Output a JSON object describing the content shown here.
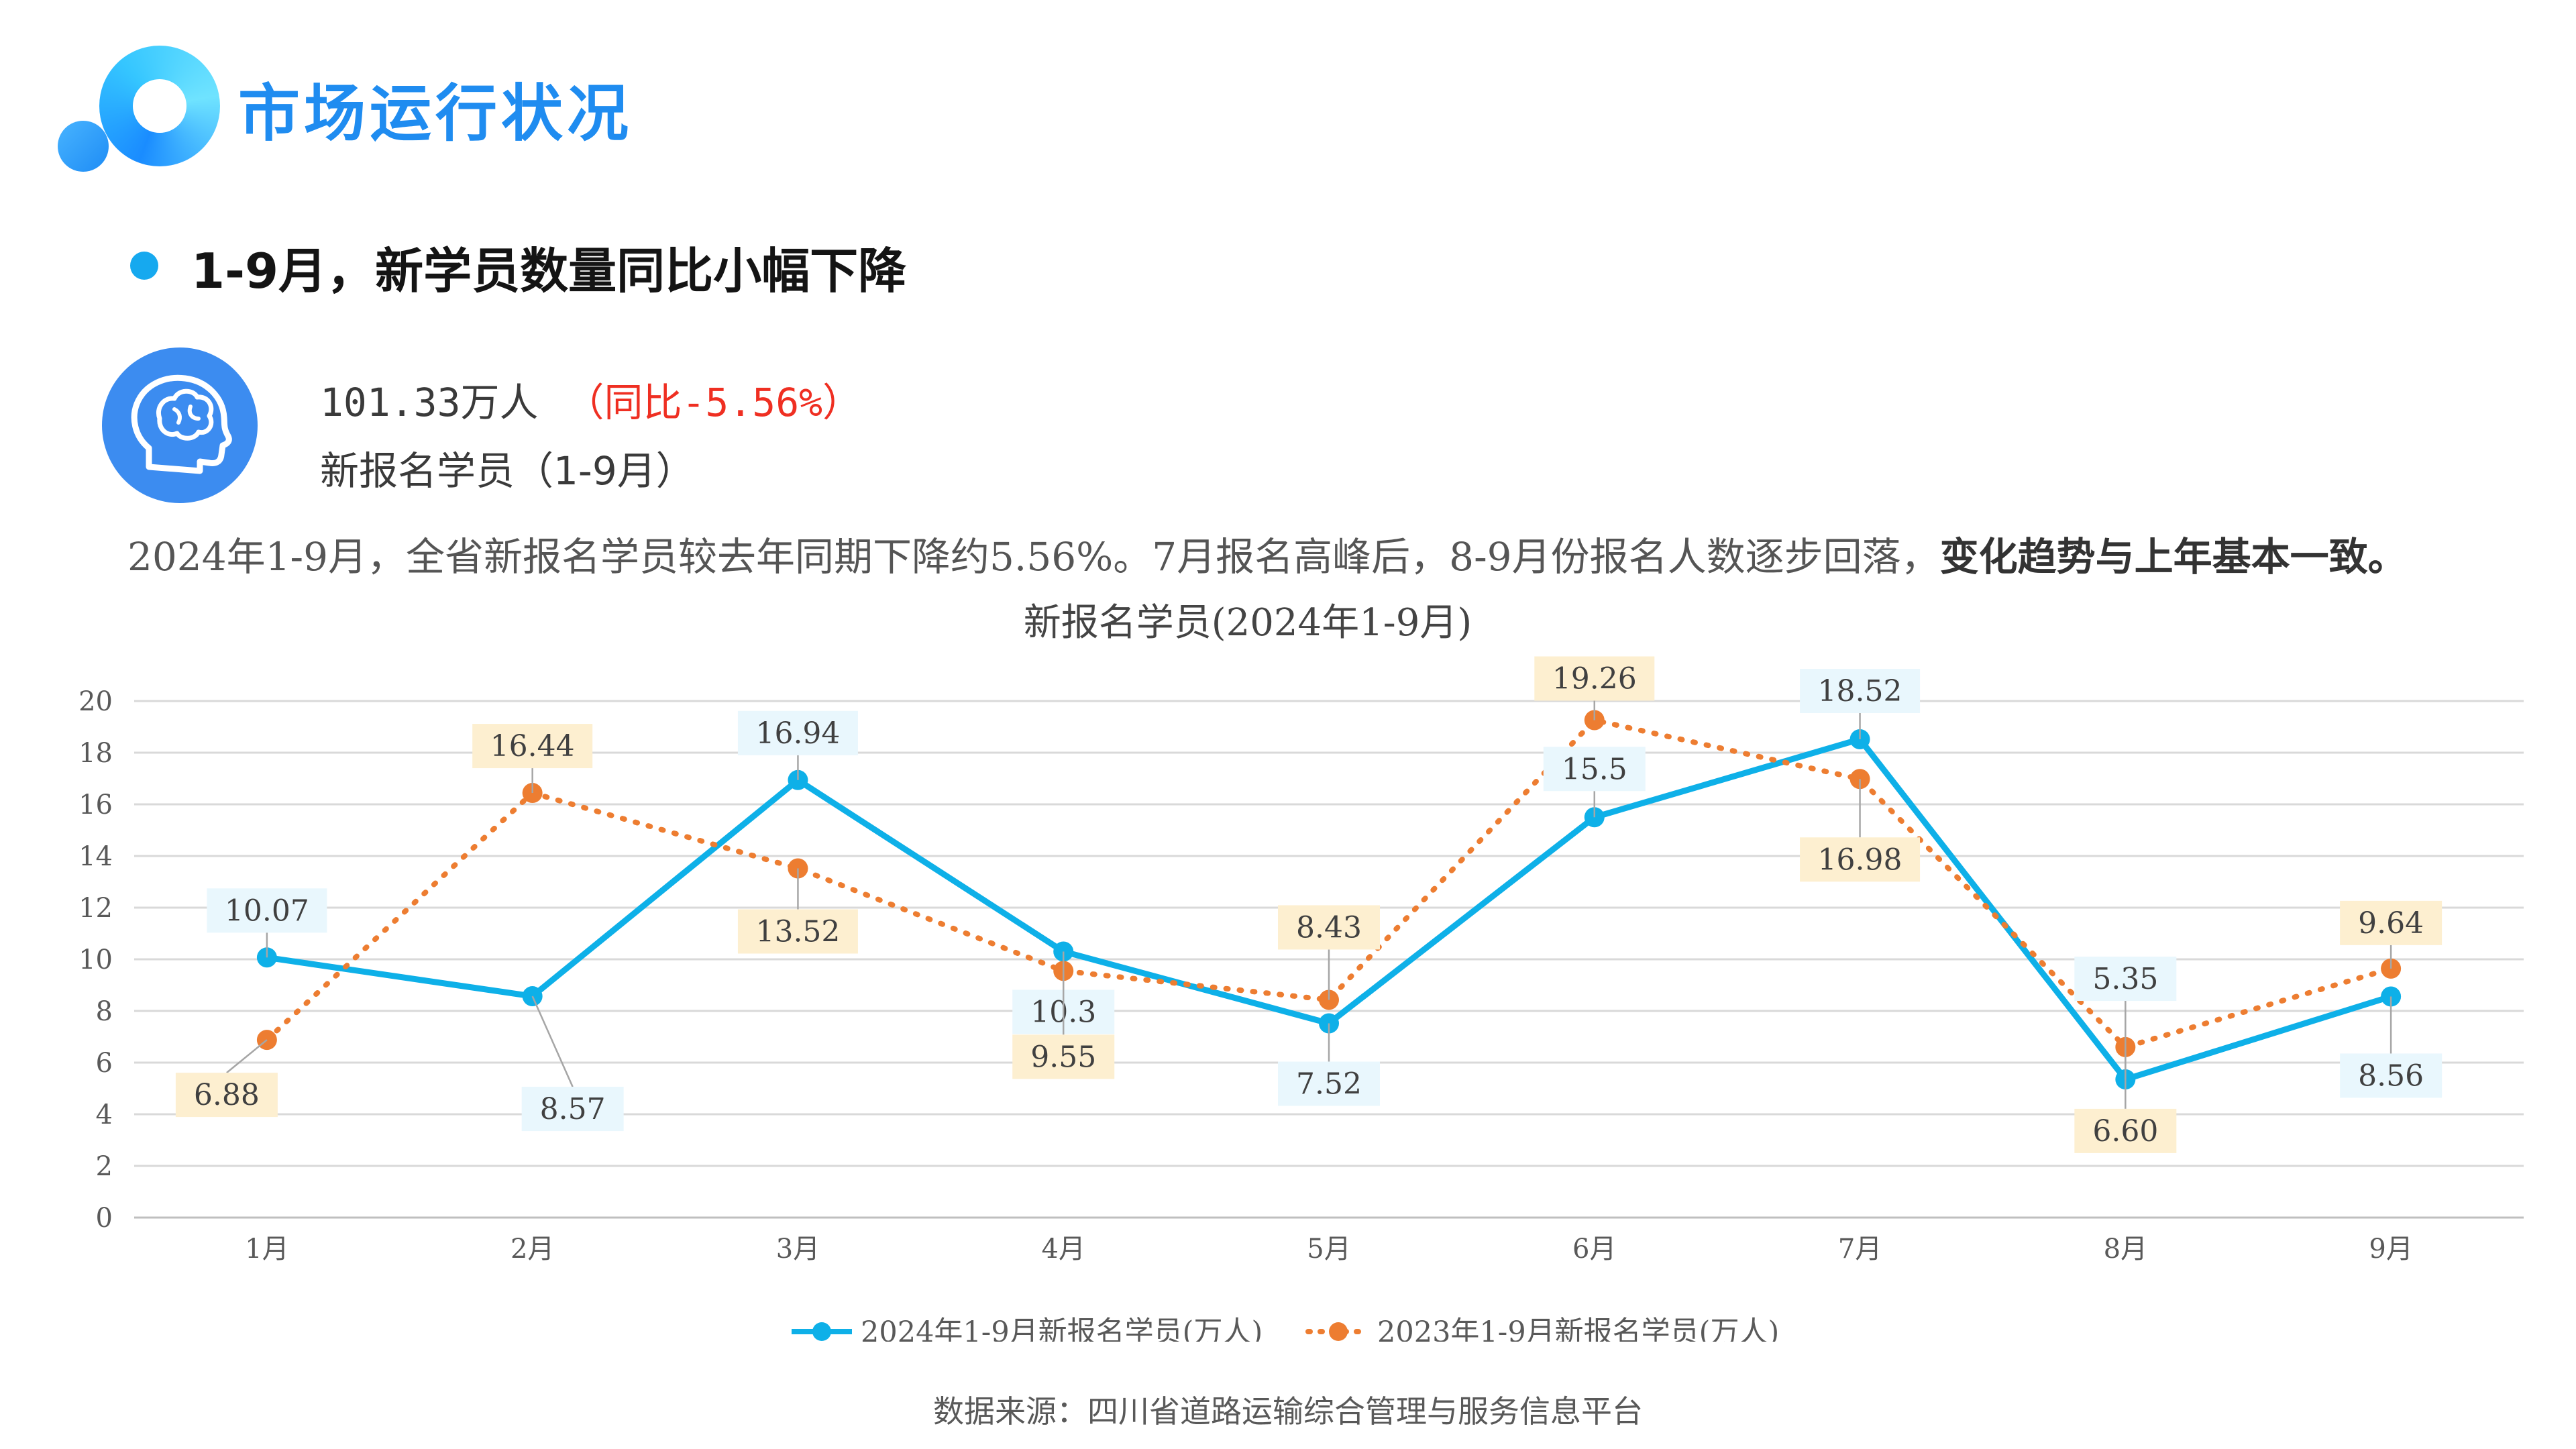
{
  "header": {
    "title": "市场运行状况"
  },
  "headline": {
    "text": "1-9月，新学员数量同比小幅下降"
  },
  "stat": {
    "value": "101.33万人",
    "yoy": "（同比-5.56%）",
    "label": "新报名学员（1-9月）"
  },
  "description": {
    "main": "2024年1-9月，全省新报名学员较去年同期下降约5.56%。7月报名高峰后，8-9月份报名人数逐步回落，",
    "emphasis": "变化趋势与上年基本一致。"
  },
  "icons": {
    "logo": "logo-rings-icon",
    "bullet": "bullet-dot-icon",
    "head": "head-brain-icon"
  },
  "colors": {
    "accent": "#1f8cf0",
    "series_2024": "#0eb0e8",
    "series_2023": "#ed7d31",
    "negative": "#ef2f22"
  },
  "chart_data": {
    "type": "line",
    "title": "新报名学员(2024年1-9月)",
    "categories": [
      "1月",
      "2月",
      "3月",
      "4月",
      "5月",
      "6月",
      "7月",
      "8月",
      "9月"
    ],
    "series": [
      {
        "name": "2024年1-9月新报名学员(万人)",
        "values": [
          10.07,
          8.57,
          16.94,
          10.3,
          7.52,
          15.5,
          18.52,
          5.35,
          8.56
        ],
        "labels": [
          "10.07",
          "8.57",
          "16.94",
          "10.3",
          "7.52",
          "15.5",
          "18.52",
          "5.35",
          "8.56"
        ],
        "style": "solid"
      },
      {
        "name": "2023年1-9月新报名学员(万人)",
        "values": [
          6.88,
          16.44,
          13.52,
          9.55,
          8.43,
          19.26,
          16.98,
          6.6,
          9.64
        ],
        "labels": [
          "6.88",
          "16.44",
          "13.52",
          "9.55",
          "8.43",
          "19.26",
          "16.98",
          "6.60",
          "9.64"
        ],
        "style": "dotted"
      }
    ],
    "ylim": [
      0,
      20
    ],
    "yticks": [
      0,
      2,
      4,
      6,
      8,
      10,
      12,
      14,
      16,
      18,
      20
    ],
    "grid": true,
    "legend_position": "bottom"
  },
  "footer": {
    "source": "数据来源：四川省道路运输综合管理与服务信息平台"
  }
}
